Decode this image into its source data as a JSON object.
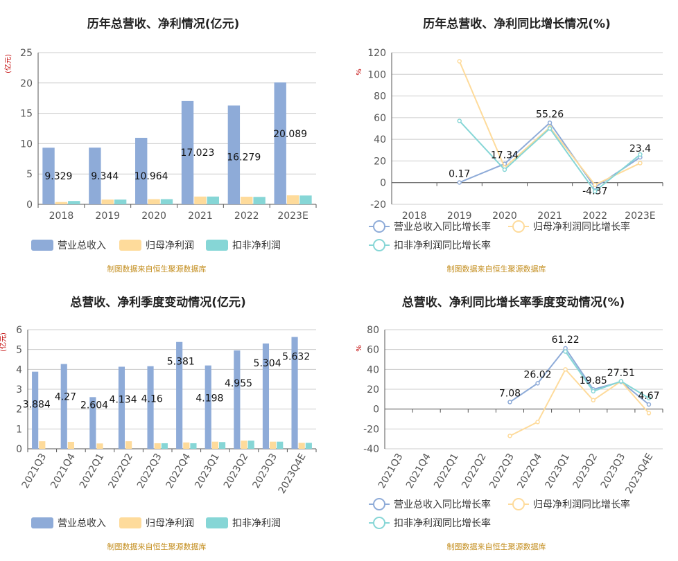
{
  "colors": {
    "revenue": "#8eabd8",
    "parent_profit": "#fedb9b",
    "deducted_profit": "#86d6d6",
    "axis": "#555555",
    "grid": "#cccccc",
    "unit": "#c00000",
    "source": "#c38d1d",
    "title": "#222222"
  },
  "chart_data": [
    {
      "type": "bar",
      "title": "历年总营收、净利情况(亿元)",
      "unit_label": "(亿元)",
      "categories": [
        "2018",
        "2019",
        "2020",
        "2021",
        "2022",
        "2023E"
      ],
      "ylim": [
        0,
        25
      ],
      "yticks": [
        0,
        5,
        10,
        15,
        20,
        25
      ],
      "series": [
        {
          "name": "营业总收入",
          "values": [
            9.329,
            9.344,
            10.964,
            17.023,
            16.279,
            20.089
          ],
          "labels": [
            "9.329",
            "9.344",
            "10.964",
            "17.023",
            "16.279",
            "20.089"
          ]
        },
        {
          "name": "归母净利润",
          "values": [
            0.38,
            0.78,
            0.85,
            1.28,
            1.25,
            1.48
          ]
        },
        {
          "name": "扣非净利润",
          "values": [
            0.55,
            0.78,
            0.85,
            1.28,
            1.22,
            1.45
          ]
        }
      ],
      "legend": "bottom",
      "source": "制图数据来自恒生聚源数据库"
    },
    {
      "type": "line",
      "title": "历年总营收、净利同比增长情况(%)",
      "unit_label": "%",
      "categories": [
        "2018",
        "2019",
        "2020",
        "2021",
        "2022",
        "2023E"
      ],
      "ylim": [
        -20,
        120
      ],
      "yticks": [
        -20,
        0,
        20,
        40,
        60,
        80,
        100,
        120
      ],
      "series": [
        {
          "name": "营业总收入同比增长率",
          "values": [
            null,
            0.17,
            17.34,
            55.26,
            -4.37,
            23.4
          ],
          "labels": [
            "",
            "0.17",
            "17.34",
            "55.26",
            "-4.37",
            "23.4"
          ]
        },
        {
          "name": "归母净利润同比增长率",
          "values": [
            null,
            112,
            14,
            51,
            -2,
            18
          ]
        },
        {
          "name": "扣非净利润同比增长率",
          "values": [
            null,
            57,
            12,
            50,
            -8,
            26
          ]
        }
      ],
      "legend": "bottom",
      "source": "制图数据来自恒生聚源数据库"
    },
    {
      "type": "bar",
      "title": "总营收、净利季度变动情况(亿元)",
      "unit_label": "(亿元)",
      "categories": [
        "2021Q3",
        "2021Q4",
        "2022Q1",
        "2022Q2",
        "2022Q3",
        "2022Q4",
        "2023Q1",
        "2023Q2",
        "2023Q3",
        "2023Q4E"
      ],
      "ylim": [
        0,
        6
      ],
      "yticks": [
        0,
        1,
        2,
        3,
        4,
        5,
        6
      ],
      "series": [
        {
          "name": "营业总收入",
          "values": [
            3.884,
            4.27,
            2.604,
            4.134,
            4.16,
            5.381,
            4.198,
            4.955,
            5.304,
            5.632
          ],
          "labels": [
            "3.884",
            "4.27",
            "2.604",
            "4.134",
            "4.16",
            "5.381",
            "4.198",
            "4.955",
            "5.304",
            "5.632"
          ]
        },
        {
          "name": "归母净利润",
          "values": [
            0.38,
            0.35,
            0.27,
            0.38,
            0.28,
            0.32,
            0.36,
            0.41,
            0.36,
            0.3
          ]
        },
        {
          "name": "扣非净利润",
          "values": [
            null,
            null,
            null,
            null,
            0.28,
            0.28,
            0.34,
            0.41,
            0.36,
            0.3
          ]
        }
      ],
      "legend": "bottom",
      "source": "制图数据来自恒生聚源数据库"
    },
    {
      "type": "line",
      "title": "总营收、净利同比增长率季度变动情况(%)",
      "unit_label": "%",
      "categories": [
        "2021Q3",
        "2021Q4",
        "2022Q1",
        "2022Q2",
        "2022Q3",
        "2022Q4",
        "2023Q1",
        "2023Q2",
        "2023Q3",
        "2023Q4E"
      ],
      "ylim": [
        -40,
        80
      ],
      "yticks": [
        -40,
        -20,
        0,
        20,
        40,
        60,
        80
      ],
      "series": [
        {
          "name": "营业总收入同比增长率",
          "values": [
            null,
            null,
            null,
            null,
            7.08,
            26.02,
            61.22,
            19.85,
            27.51,
            4.67
          ],
          "labels": [
            "",
            "",
            "",
            "",
            "7.08",
            "26.02",
            "61.22",
            "19.85",
            "27.51",
            "4.67"
          ]
        },
        {
          "name": "归母净利润同比增长率",
          "values": [
            null,
            null,
            null,
            null,
            -27,
            -13,
            40,
            9,
            28,
            -4
          ]
        },
        {
          "name": "扣非净利润同比增长率",
          "values": [
            null,
            null,
            null,
            null,
            null,
            null,
            58,
            18,
            28,
            11
          ]
        }
      ],
      "legend": "bottom",
      "source": "制图数据来自恒生聚源数据库"
    }
  ]
}
